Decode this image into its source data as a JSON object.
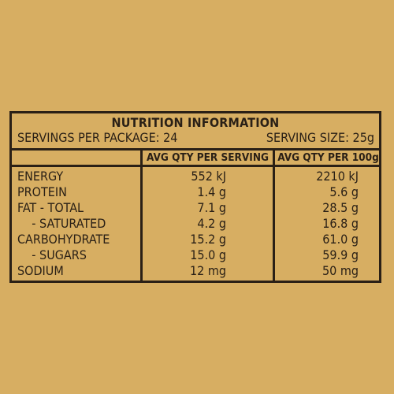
{
  "title": "NUTRITION INFORMATION",
  "servings_per_package": "SERVINGS PER PACKAGE: 24",
  "serving_size": "SERVING SIZE: 25g",
  "columns": {
    "per_serving": "AVG QTY PER SERVING",
    "per_100g": "AVG QTY PER 100g"
  },
  "rows": [
    {
      "label": "ENERGY",
      "per_serving": "552 kJ",
      "per_100g": "2210 kJ"
    },
    {
      "label": "PROTEIN",
      "per_serving": "1.4 g",
      "per_100g": "5.6 g"
    },
    {
      "label": "FAT - TOTAL",
      "per_serving": "7.1 g",
      "per_100g": "28.5 g"
    },
    {
      "label": "    - SATURATED",
      "per_serving": "4.2 g",
      "per_100g": "16.8 g"
    },
    {
      "label": "CARBOHYDRATE",
      "per_serving": "15.2 g",
      "per_100g": "61.0 g"
    },
    {
      "label": "    - SUGARS",
      "per_serving": "15.0 g",
      "per_100g": "59.9 g"
    },
    {
      "label": "SODIUM",
      "per_serving": "12 mg",
      "per_100g": "50 mg"
    }
  ]
}
